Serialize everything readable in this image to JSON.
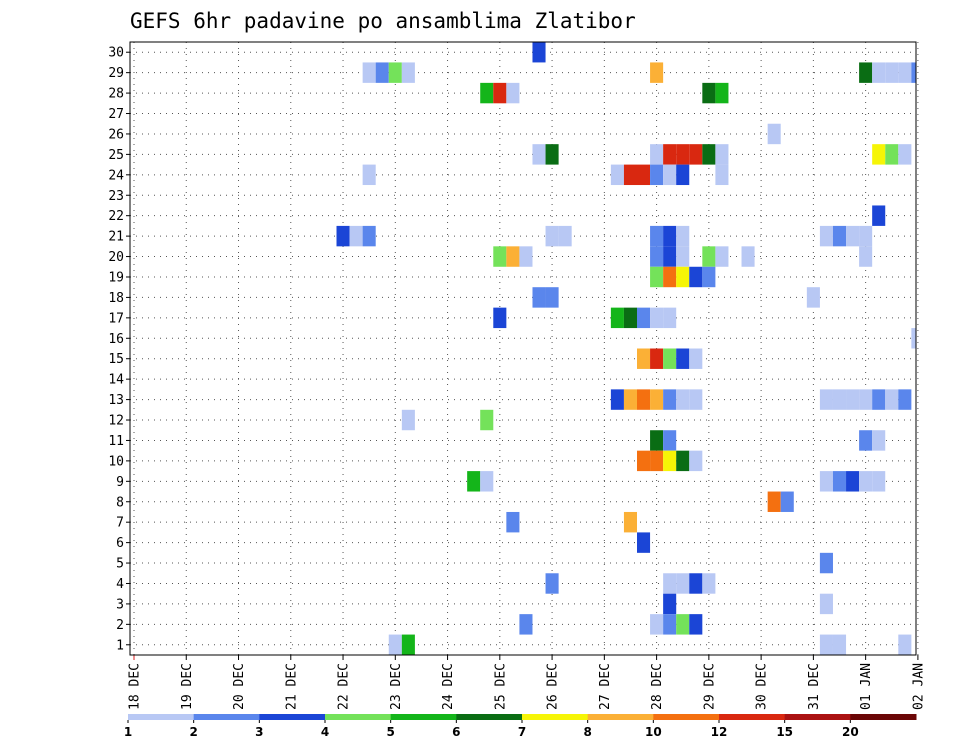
{
  "chart_data": {
    "type": "heatmap",
    "title": "GEFS 6hr padavine po ansamblima Zlatibor",
    "xlabel": "",
    "ylabel": "",
    "x_tick_labels": [
      "18 DEC",
      "19 DEC",
      "20 DEC",
      "21 DEC",
      "22 DEC",
      "23 DEC",
      "24 DEC",
      "25 DEC",
      "26 DEC",
      "27 DEC",
      "28 DEC",
      "29 DEC",
      "30 DEC",
      "31 DEC",
      "01 JAN",
      "02 JAN"
    ],
    "y_tick_labels": [
      "1",
      "2",
      "3",
      "4",
      "5",
      "6",
      "7",
      "8",
      "9",
      "10",
      "11",
      "12",
      "13",
      "14",
      "15",
      "16",
      "17",
      "18",
      "19",
      "20",
      "21",
      "22",
      "23",
      "24",
      "25",
      "26",
      "27",
      "28",
      "29",
      "30"
    ],
    "xlim_steps": [
      0,
      60
    ],
    "ylim": [
      0.5,
      30.5
    ],
    "grid": true,
    "colorbar": {
      "thresholds": [
        "1",
        "2",
        "3",
        "4",
        "5",
        "6",
        "7",
        "8",
        "10",
        "12",
        "15",
        "20"
      ],
      "colors": [
        "#b8c8f4",
        "#5a86ec",
        "#1b45d6",
        "#74e25a",
        "#14b51a",
        "#0a6d14",
        "#f6f506",
        "#fbb036",
        "#f47010",
        "#d92810",
        "#ab1212",
        "#6b0606"
      ]
    },
    "cells": [
      {
        "m": 30,
        "t": 31,
        "c": 2
      },
      {
        "m": 29,
        "t": 18,
        "c": 0
      },
      {
        "m": 29,
        "t": 19,
        "c": 1
      },
      {
        "m": 29,
        "t": 20,
        "c": 3
      },
      {
        "m": 29,
        "t": 21,
        "c": 0
      },
      {
        "m": 29,
        "t": 40,
        "c": 7
      },
      {
        "m": 29,
        "t": 56,
        "c": 5
      },
      {
        "m": 29,
        "t": 57,
        "c": 0
      },
      {
        "m": 29,
        "t": 58,
        "c": 0
      },
      {
        "m": 29,
        "t": 59,
        "c": 0
      },
      {
        "m": 29,
        "t": 60,
        "c": 1
      },
      {
        "m": 28,
        "t": 27,
        "c": 4
      },
      {
        "m": 28,
        "t": 28,
        "c": 9
      },
      {
        "m": 28,
        "t": 29,
        "c": 0
      },
      {
        "m": 28,
        "t": 44,
        "c": 5
      },
      {
        "m": 28,
        "t": 45,
        "c": 4
      },
      {
        "m": 26,
        "t": 49,
        "c": 0
      },
      {
        "m": 25,
        "t": 31,
        "c": 0
      },
      {
        "m": 25,
        "t": 32,
        "c": 5
      },
      {
        "m": 25,
        "t": 40,
        "c": 0
      },
      {
        "m": 25,
        "t": 41,
        "c": 9
      },
      {
        "m": 25,
        "t": 42,
        "c": 9
      },
      {
        "m": 25,
        "t": 43,
        "c": 9
      },
      {
        "m": 25,
        "t": 44,
        "c": 5
      },
      {
        "m": 25,
        "t": 45,
        "c": 0
      },
      {
        "m": 25,
        "t": 57,
        "c": 6
      },
      {
        "m": 25,
        "t": 58,
        "c": 3
      },
      {
        "m": 25,
        "t": 59,
        "c": 0
      },
      {
        "m": 24,
        "t": 18,
        "c": 0
      },
      {
        "m": 24,
        "t": 37,
        "c": 0
      },
      {
        "m": 24,
        "t": 38,
        "c": 9
      },
      {
        "m": 24,
        "t": 39,
        "c": 9
      },
      {
        "m": 24,
        "t": 40,
        "c": 1
      },
      {
        "m": 24,
        "t": 41,
        "c": 0
      },
      {
        "m": 24,
        "t": 42,
        "c": 2
      },
      {
        "m": 24,
        "t": 45,
        "c": 0
      },
      {
        "m": 22,
        "t": 57,
        "c": 2
      },
      {
        "m": 21,
        "t": 16,
        "c": 2
      },
      {
        "m": 21,
        "t": 17,
        "c": 0
      },
      {
        "m": 21,
        "t": 18,
        "c": 1
      },
      {
        "m": 21,
        "t": 32,
        "c": 0
      },
      {
        "m": 21,
        "t": 33,
        "c": 0
      },
      {
        "m": 21,
        "t": 40,
        "c": 1
      },
      {
        "m": 21,
        "t": 41,
        "c": 2
      },
      {
        "m": 21,
        "t": 42,
        "c": 0
      },
      {
        "m": 21,
        "t": 53,
        "c": 0
      },
      {
        "m": 21,
        "t": 54,
        "c": 1
      },
      {
        "m": 21,
        "t": 55,
        "c": 0
      },
      {
        "m": 21,
        "t": 56,
        "c": 0
      },
      {
        "m": 20,
        "t": 28,
        "c": 3
      },
      {
        "m": 20,
        "t": 29,
        "c": 7
      },
      {
        "m": 20,
        "t": 30,
        "c": 0
      },
      {
        "m": 20,
        "t": 40,
        "c": 1
      },
      {
        "m": 20,
        "t": 41,
        "c": 2
      },
      {
        "m": 20,
        "t": 42,
        "c": 0
      },
      {
        "m": 20,
        "t": 44,
        "c": 3
      },
      {
        "m": 20,
        "t": 45,
        "c": 0
      },
      {
        "m": 20,
        "t": 47,
        "c": 0
      },
      {
        "m": 20,
        "t": 56,
        "c": 0
      },
      {
        "m": 19,
        "t": 40,
        "c": 3
      },
      {
        "m": 19,
        "t": 41,
        "c": 8
      },
      {
        "m": 19,
        "t": 42,
        "c": 6
      },
      {
        "m": 19,
        "t": 43,
        "c": 2
      },
      {
        "m": 19,
        "t": 44,
        "c": 1
      },
      {
        "m": 18,
        "t": 31,
        "c": 1
      },
      {
        "m": 18,
        "t": 32,
        "c": 1
      },
      {
        "m": 18,
        "t": 52,
        "c": 0
      },
      {
        "m": 17,
        "t": 28,
        "c": 2
      },
      {
        "m": 17,
        "t": 37,
        "c": 4
      },
      {
        "m": 17,
        "t": 38,
        "c": 5
      },
      {
        "m": 17,
        "t": 39,
        "c": 1
      },
      {
        "m": 17,
        "t": 40,
        "c": 0
      },
      {
        "m": 17,
        "t": 41,
        "c": 0
      },
      {
        "m": 16,
        "t": 60,
        "c": 0
      },
      {
        "m": 15,
        "t": 39,
        "c": 7
      },
      {
        "m": 15,
        "t": 40,
        "c": 9
      },
      {
        "m": 15,
        "t": 41,
        "c": 3
      },
      {
        "m": 15,
        "t": 42,
        "c": 2
      },
      {
        "m": 15,
        "t": 43,
        "c": 0
      },
      {
        "m": 13,
        "t": 37,
        "c": 2
      },
      {
        "m": 13,
        "t": 38,
        "c": 7
      },
      {
        "m": 13,
        "t": 39,
        "c": 8
      },
      {
        "m": 13,
        "t": 40,
        "c": 7
      },
      {
        "m": 13,
        "t": 41,
        "c": 1
      },
      {
        "m": 13,
        "t": 42,
        "c": 0
      },
      {
        "m": 13,
        "t": 43,
        "c": 0
      },
      {
        "m": 13,
        "t": 53,
        "c": 0
      },
      {
        "m": 13,
        "t": 54,
        "c": 0
      },
      {
        "m": 13,
        "t": 55,
        "c": 0
      },
      {
        "m": 13,
        "t": 56,
        "c": 0
      },
      {
        "m": 13,
        "t": 57,
        "c": 1
      },
      {
        "m": 13,
        "t": 58,
        "c": 0
      },
      {
        "m": 13,
        "t": 59,
        "c": 1
      },
      {
        "m": 12,
        "t": 21,
        "c": 0
      },
      {
        "m": 12,
        "t": 27,
        "c": 3
      },
      {
        "m": 11,
        "t": 40,
        "c": 5
      },
      {
        "m": 11,
        "t": 41,
        "c": 1
      },
      {
        "m": 11,
        "t": 56,
        "c": 1
      },
      {
        "m": 11,
        "t": 57,
        "c": 0
      },
      {
        "m": 10,
        "t": 39,
        "c": 8
      },
      {
        "m": 10,
        "t": 40,
        "c": 8
      },
      {
        "m": 10,
        "t": 41,
        "c": 6
      },
      {
        "m": 10,
        "t": 42,
        "c": 5
      },
      {
        "m": 10,
        "t": 43,
        "c": 0
      },
      {
        "m": 9,
        "t": 26,
        "c": 4
      },
      {
        "m": 9,
        "t": 27,
        "c": 0
      },
      {
        "m": 9,
        "t": 53,
        "c": 0
      },
      {
        "m": 9,
        "t": 54,
        "c": 1
      },
      {
        "m": 9,
        "t": 55,
        "c": 2
      },
      {
        "m": 9,
        "t": 56,
        "c": 0
      },
      {
        "m": 9,
        "t": 57,
        "c": 0
      },
      {
        "m": 8,
        "t": 49,
        "c": 8
      },
      {
        "m": 8,
        "t": 50,
        "c": 1
      },
      {
        "m": 7,
        "t": 29,
        "c": 1
      },
      {
        "m": 7,
        "t": 38,
        "c": 7
      },
      {
        "m": 6,
        "t": 39,
        "c": 2
      },
      {
        "m": 5,
        "t": 53,
        "c": 1
      },
      {
        "m": 4,
        "t": 32,
        "c": 1
      },
      {
        "m": 4,
        "t": 41,
        "c": 0
      },
      {
        "m": 4,
        "t": 42,
        "c": 0
      },
      {
        "m": 4,
        "t": 43,
        "c": 2
      },
      {
        "m": 4,
        "t": 44,
        "c": 0
      },
      {
        "m": 3,
        "t": 41,
        "c": 2
      },
      {
        "m": 3,
        "t": 53,
        "c": 0
      },
      {
        "m": 2,
        "t": 30,
        "c": 1
      },
      {
        "m": 2,
        "t": 40,
        "c": 0
      },
      {
        "m": 2,
        "t": 41,
        "c": 1
      },
      {
        "m": 2,
        "t": 42,
        "c": 3
      },
      {
        "m": 2,
        "t": 43,
        "c": 2
      },
      {
        "m": 1,
        "t": 20,
        "c": 0
      },
      {
        "m": 1,
        "t": 21,
        "c": 4
      },
      {
        "m": 1,
        "t": 53,
        "c": 0
      },
      {
        "m": 1,
        "t": 54,
        "c": 0
      },
      {
        "m": 1,
        "t": 59,
        "c": 0
      }
    ]
  }
}
